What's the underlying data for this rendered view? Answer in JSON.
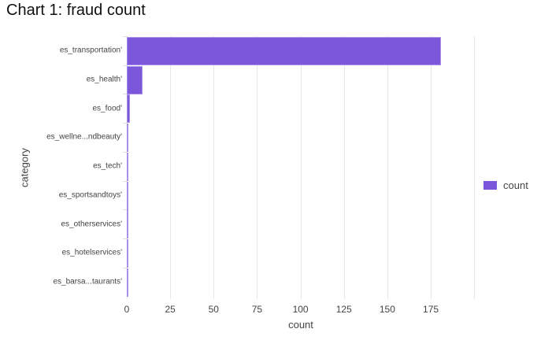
{
  "title": "Chart 1: fraud count",
  "chart_data": {
    "type": "bar",
    "orientation": "horizontal",
    "title": "Chart 1: fraud count",
    "xlabel": "count",
    "ylabel": "category",
    "categories": [
      "es_transportation'",
      "es_health'",
      "es_food'",
      "es_wellne...ndbeauty'",
      "es_tech'",
      "es_sportsandtoys'",
      "es_otherservices'",
      "es_hotelservices'",
      "es_barsa...taurants'"
    ],
    "series": [
      {
        "name": "count",
        "color": "#7b58db",
        "values": [
          181,
          9,
          2,
          1,
          1,
          1,
          1,
          1,
          1
        ]
      }
    ],
    "xlim": [
      0,
      200
    ],
    "xticks": [
      "0",
      "25",
      "50",
      "75",
      "100",
      "125",
      "150",
      "175"
    ],
    "grid": true,
    "legend_position": "right"
  },
  "legend": {
    "label": "count",
    "color": "#7b58db"
  }
}
